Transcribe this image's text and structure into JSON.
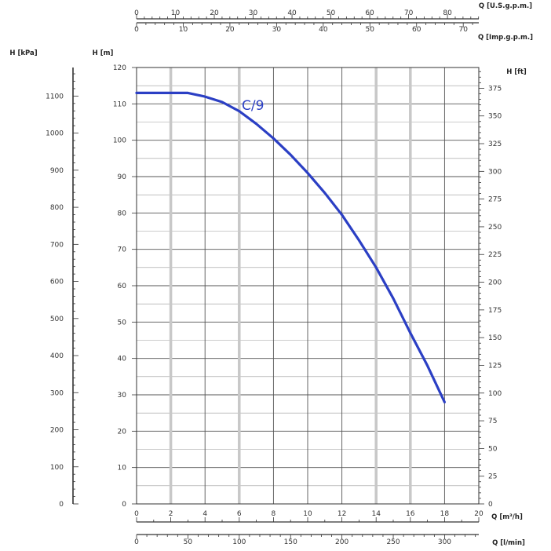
{
  "chart_data": {
    "type": "line",
    "series": [
      {
        "name": "C/9",
        "x": [
          0,
          1,
          2,
          3,
          4,
          5,
          6,
          7,
          8,
          9,
          10,
          11,
          12,
          13,
          14,
          15,
          16,
          17,
          18
        ],
        "y": [
          113,
          113,
          113,
          113,
          112,
          110.5,
          108,
          104.5,
          100.5,
          96,
          91,
          85.5,
          79.5,
          72.5,
          65,
          56.5,
          47,
          38,
          28
        ]
      }
    ],
    "xlabel": "Q [m³/h]",
    "ylabel": "H [m]",
    "xlim": [
      0,
      20
    ],
    "ylim": [
      0,
      120
    ],
    "x_ticks": [
      "0",
      "2",
      "4",
      "6",
      "8",
      "10",
      "12",
      "14",
      "16",
      "18",
      "20"
    ],
    "y_ticks": [
      "0",
      "10",
      "20",
      "30",
      "40",
      "50",
      "60",
      "70",
      "80",
      "90",
      "100",
      "110",
      "120"
    ],
    "grid": true,
    "color": "#2b3fc4",
    "secondary_axes": {
      "kpa": {
        "label": "H [kPa]",
        "max": 1177,
        "ticks": [
          "0",
          "100",
          "200",
          "300",
          "400",
          "500",
          "600",
          "700",
          "800",
          "900",
          "1000",
          "1100"
        ]
      },
      "ft": {
        "label": "H [ft]",
        "max": 393.7,
        "ticks": [
          "0",
          "25",
          "50",
          "75",
          "100",
          "125",
          "150",
          "175",
          "200",
          "225",
          "250",
          "275",
          "300",
          "325",
          "350",
          "375"
        ]
      },
      "lmin": {
        "label": "Q [l/min]",
        "max": 333.3,
        "ticks": [
          "0",
          "50",
          "100",
          "150",
          "200",
          "250",
          "300"
        ]
      },
      "usgpm": {
        "label": "Q [U.S.g.p.m.]",
        "max": 88.06,
        "ticks": [
          "0",
          "10",
          "20",
          "30",
          "40",
          "50",
          "60",
          "70",
          "80"
        ]
      },
      "impgpm": {
        "label": "Q [Imp.g.p.m.]",
        "max": 73.33,
        "ticks": [
          "0",
          "10",
          "20",
          "30",
          "40",
          "50",
          "60",
          "70"
        ]
      }
    }
  }
}
